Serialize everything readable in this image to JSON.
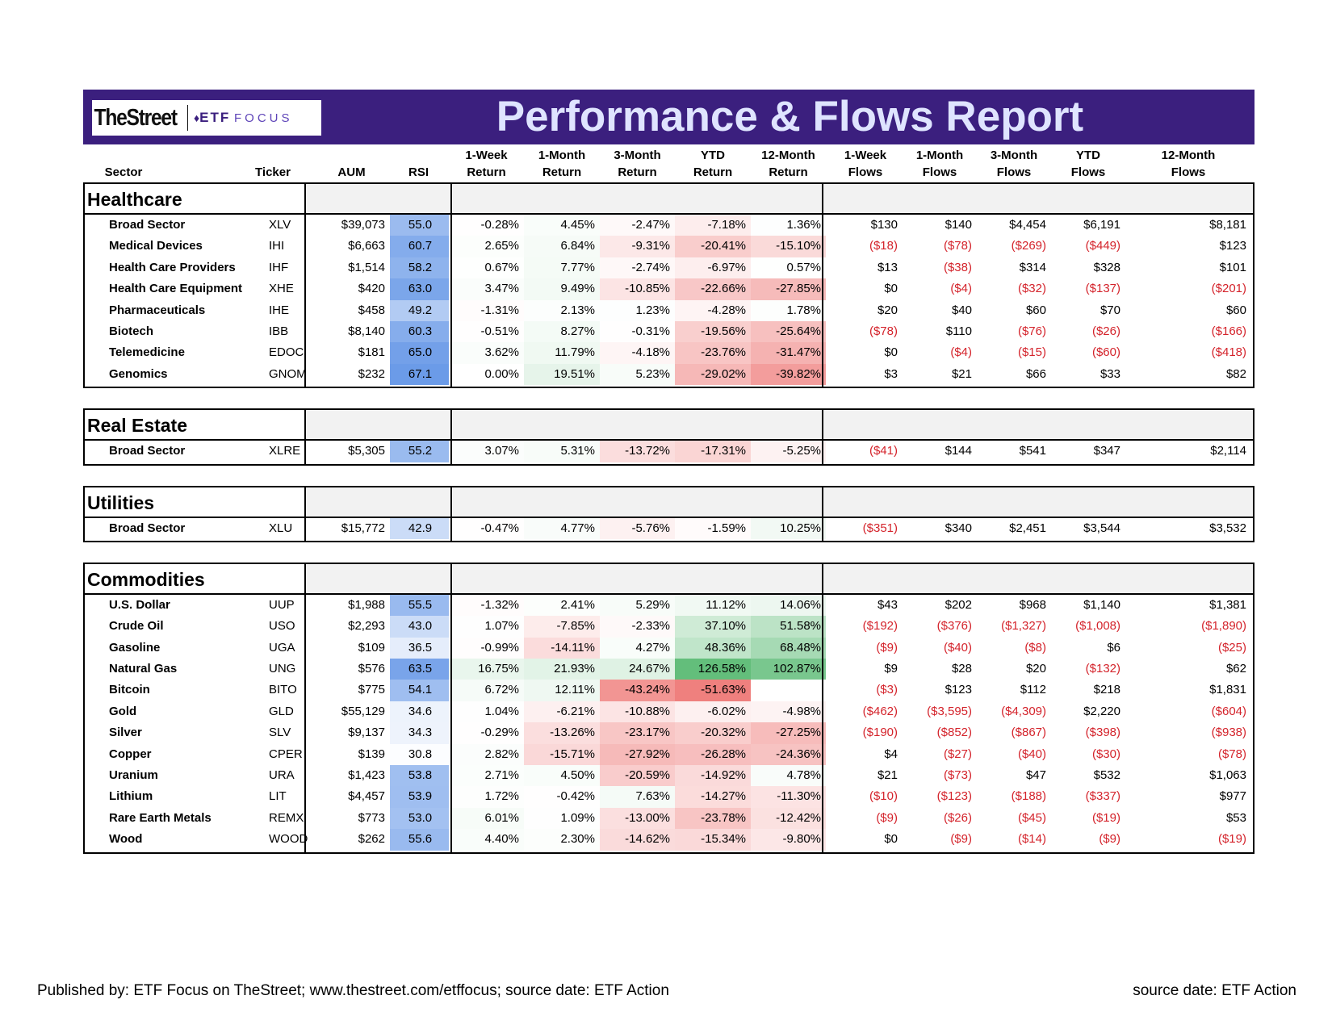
{
  "logo": {
    "thestreet": "TheStreet",
    "etf": "ETF",
    "focus": "FOCUS"
  },
  "title": "Performance & Flows Report",
  "headers": {
    "sector": "Sector",
    "ticker": "Ticker",
    "aum": "AUM",
    "rsi": "RSI",
    "cols": [
      [
        "1-Week",
        "Return"
      ],
      [
        "1-Month",
        "Return"
      ],
      [
        "3-Month",
        "Return"
      ],
      [
        "YTD",
        "Return"
      ],
      [
        "12-Month",
        "Return"
      ],
      [
        "1-Week",
        "Flows"
      ],
      [
        "1-Month",
        "Flows"
      ],
      [
        "3-Month",
        "Flows"
      ],
      [
        "YTD",
        "Flows"
      ],
      [
        "12-Month",
        "Flows"
      ]
    ]
  },
  "sections": [
    {
      "title": "Healthcare",
      "rows": [
        {
          "name": "Broad Sector",
          "ticker": "XLV",
          "aum": "$39,073",
          "rsi": "55.0",
          "returns": [
            "-0.28%",
            "4.45%",
            "-2.47%",
            "-7.18%",
            "1.36%"
          ],
          "flows": [
            "$130",
            "$140",
            "$4,454",
            "$6,191",
            "$8,181"
          ]
        },
        {
          "name": "Medical Devices",
          "ticker": "IHI",
          "aum": "$6,663",
          "rsi": "60.7",
          "returns": [
            "2.65%",
            "6.84%",
            "-9.31%",
            "-20.41%",
            "-15.10%"
          ],
          "flows": [
            "($18)",
            "($78)",
            "($269)",
            "($449)",
            "$123"
          ]
        },
        {
          "name": "Health Care Providers",
          "ticker": "IHF",
          "aum": "$1,514",
          "rsi": "58.2",
          "returns": [
            "0.67%",
            "7.77%",
            "-2.74%",
            "-6.97%",
            "0.57%"
          ],
          "flows": [
            "$13",
            "($38)",
            "$314",
            "$328",
            "$101"
          ]
        },
        {
          "name": "Health Care Equipment",
          "ticker": "XHE",
          "aum": "$420",
          "rsi": "63.0",
          "returns": [
            "3.47%",
            "9.49%",
            "-10.85%",
            "-22.66%",
            "-27.85%"
          ],
          "flows": [
            "$0",
            "($4)",
            "($32)",
            "($137)",
            "($201)"
          ]
        },
        {
          "name": "Pharmaceuticals",
          "ticker": "IHE",
          "aum": "$458",
          "rsi": "49.2",
          "returns": [
            "-1.31%",
            "2.13%",
            "1.23%",
            "-4.28%",
            "1.78%"
          ],
          "flows": [
            "$20",
            "$40",
            "$60",
            "$70",
            "$60"
          ]
        },
        {
          "name": "Biotech",
          "ticker": "IBB",
          "aum": "$8,140",
          "rsi": "60.3",
          "returns": [
            "-0.51%",
            "8.27%",
            "-0.31%",
            "-19.56%",
            "-25.64%"
          ],
          "flows": [
            "($78)",
            "$110",
            "($76)",
            "($26)",
            "($166)"
          ]
        },
        {
          "name": "Telemedicine",
          "ticker": "EDOC",
          "aum": "$181",
          "rsi": "65.0",
          "returns": [
            "3.62%",
            "11.79%",
            "-4.18%",
            "-23.76%",
            "-31.47%"
          ],
          "flows": [
            "$0",
            "($4)",
            "($15)",
            "($60)",
            "($418)"
          ]
        },
        {
          "name": "Genomics",
          "ticker": "GNOM",
          "aum": "$232",
          "rsi": "67.1",
          "returns": [
            "0.00%",
            "19.51%",
            "5.23%",
            "-29.02%",
            "-39.82%"
          ],
          "flows": [
            "$3",
            "$21",
            "$66",
            "$33",
            "$82"
          ]
        }
      ]
    },
    {
      "title": "Real Estate",
      "rows": [
        {
          "name": "Broad Sector",
          "ticker": "XLRE",
          "aum": "$5,305",
          "rsi": "55.2",
          "returns": [
            "3.07%",
            "5.31%",
            "-13.72%",
            "-17.31%",
            "-5.25%"
          ],
          "flows": [
            "($41)",
            "$144",
            "$541",
            "$347",
            "$2,114"
          ]
        }
      ]
    },
    {
      "title": "Utilities",
      "rows": [
        {
          "name": "Broad Sector",
          "ticker": "XLU",
          "aum": "$15,772",
          "rsi": "42.9",
          "returns": [
            "-0.47%",
            "4.77%",
            "-5.76%",
            "-1.59%",
            "10.25%"
          ],
          "flows": [
            "($351)",
            "$340",
            "$2,451",
            "$3,544",
            "$3,532"
          ]
        }
      ]
    },
    {
      "title": "Commodities",
      "rows": [
        {
          "name": "U.S. Dollar",
          "ticker": "UUP",
          "aum": "$1,988",
          "rsi": "55.5",
          "returns": [
            "-1.32%",
            "2.41%",
            "5.29%",
            "11.12%",
            "14.06%"
          ],
          "flows": [
            "$43",
            "$202",
            "$968",
            "$1,140",
            "$1,381"
          ]
        },
        {
          "name": "Crude Oil",
          "ticker": "USO",
          "aum": "$2,293",
          "rsi": "43.0",
          "returns": [
            "1.07%",
            "-7.85%",
            "-2.33%",
            "37.10%",
            "51.58%"
          ],
          "flows": [
            "($192)",
            "($376)",
            "($1,327)",
            "($1,008)",
            "($1,890)"
          ]
        },
        {
          "name": "Gasoline",
          "ticker": "UGA",
          "aum": "$109",
          "rsi": "36.5",
          "returns": [
            "-0.99%",
            "-14.11%",
            "4.27%",
            "48.36%",
            "68.48%"
          ],
          "flows": [
            "($9)",
            "($40)",
            "($8)",
            "$6",
            "($25)"
          ]
        },
        {
          "name": "Natural Gas",
          "ticker": "UNG",
          "aum": "$576",
          "rsi": "63.5",
          "returns": [
            "16.75%",
            "21.93%",
            "24.67%",
            "126.58%",
            "102.87%"
          ],
          "flows": [
            "$9",
            "$28",
            "$20",
            "($132)",
            "$62"
          ]
        },
        {
          "name": "Bitcoin",
          "ticker": "BITO",
          "aum": "$775",
          "rsi": "54.1",
          "returns": [
            "6.72%",
            "12.11%",
            "-43.24%",
            "-51.63%",
            ""
          ],
          "flows": [
            "($3)",
            "$123",
            "$112",
            "$218",
            "$1,831"
          ]
        },
        {
          "name": "Gold",
          "ticker": "GLD",
          "aum": "$55,129",
          "rsi": "34.6",
          "returns": [
            "1.04%",
            "-6.21%",
            "-10.88%",
            "-6.02%",
            "-4.98%"
          ],
          "flows": [
            "($462)",
            "($3,595)",
            "($4,309)",
            "$2,220",
            "($604)"
          ]
        },
        {
          "name": "Silver",
          "ticker": "SLV",
          "aum": "$9,137",
          "rsi": "34.3",
          "returns": [
            "-0.29%",
            "-13.26%",
            "-23.17%",
            "-20.32%",
            "-27.25%"
          ],
          "flows": [
            "($190)",
            "($852)",
            "($867)",
            "($398)",
            "($938)"
          ]
        },
        {
          "name": "Copper",
          "ticker": "CPER",
          "aum": "$139",
          "rsi": "30.8",
          "returns": [
            "2.82%",
            "-15.71%",
            "-27.92%",
            "-26.28%",
            "-24.36%"
          ],
          "flows": [
            "$4",
            "($27)",
            "($40)",
            "($30)",
            "($78)"
          ]
        },
        {
          "name": "Uranium",
          "ticker": "URA",
          "aum": "$1,423",
          "rsi": "53.8",
          "returns": [
            "2.71%",
            "4.50%",
            "-20.59%",
            "-14.92%",
            "4.78%"
          ],
          "flows": [
            "$21",
            "($73)",
            "$47",
            "$532",
            "$1,063"
          ]
        },
        {
          "name": "Lithium",
          "ticker": "LIT",
          "aum": "$4,457",
          "rsi": "53.9",
          "returns": [
            "1.72%",
            "-0.42%",
            "7.63%",
            "-14.27%",
            "-11.30%"
          ],
          "flows": [
            "($10)",
            "($123)",
            "($188)",
            "($337)",
            "$977"
          ]
        },
        {
          "name": "Rare Earth Metals",
          "ticker": "REMX",
          "aum": "$773",
          "rsi": "53.0",
          "returns": [
            "6.01%",
            "1.09%",
            "-13.00%",
            "-23.78%",
            "-12.42%"
          ],
          "flows": [
            "($9)",
            "($26)",
            "($45)",
            "($19)",
            "$53"
          ]
        },
        {
          "name": "Wood",
          "ticker": "WOOD",
          "aum": "$262",
          "rsi": "55.6",
          "returns": [
            "4.40%",
            "2.30%",
            "-14.62%",
            "-15.34%",
            "-9.80%"
          ],
          "flows": [
            "$0",
            "($9)",
            "($14)",
            "($9)",
            "($19)"
          ]
        }
      ]
    }
  ],
  "footer": {
    "left": "Published by: ETF Focus on TheStreet; www.thestreet.com/etffocus; source date: ETF Action",
    "right": "source date: ETF Action"
  },
  "colors": {
    "banner": "#3b1f7e",
    "title": "#dfe4ff",
    "negative": "#d4232b",
    "rsi_high": "#6b9be8",
    "return_pos": "#63be7b",
    "return_neg": "#f8696b"
  }
}
